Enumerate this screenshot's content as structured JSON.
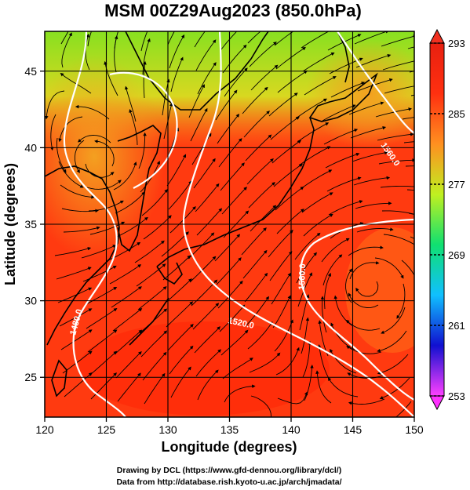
{
  "title": "MSM 00Z29Aug2023 (850.0hPa)",
  "xlabel": "Longitude (degrees)",
  "ylabel": "Latitude  (degrees)",
  "credits": [
    "Drawing by DCL (https://www.gfd-dennou.org/library/dcl/)",
    "Data from http://database.rish.kyoto-u.ac.jp/arch/jmadata/"
  ],
  "map": {
    "lon_range": [
      120,
      150
    ],
    "lat_range": [
      22.4,
      47.6
    ],
    "lon_ticks": [
      120,
      125,
      130,
      135,
      140,
      145,
      150
    ],
    "lat_ticks": [
      25,
      30,
      35,
      40,
      45
    ],
    "field_colors": {
      "warm": "#ff3a10",
      "orange": "#ff8a20",
      "yellow": "#f4c820",
      "green": "#9ae020"
    },
    "contour_labels": [
      "1480.0",
      "1520.0",
      "1560.0",
      "1560.0"
    ]
  },
  "colorbar": {
    "min": 253,
    "max": 293,
    "ticks": [
      293,
      285,
      277,
      269,
      261,
      253
    ],
    "stops": [
      "#ff40ff",
      "#1010d0",
      "#10c0ff",
      "#10e070",
      "#c0f020",
      "#ff9020",
      "#ff3010",
      "#e82010"
    ]
  }
}
